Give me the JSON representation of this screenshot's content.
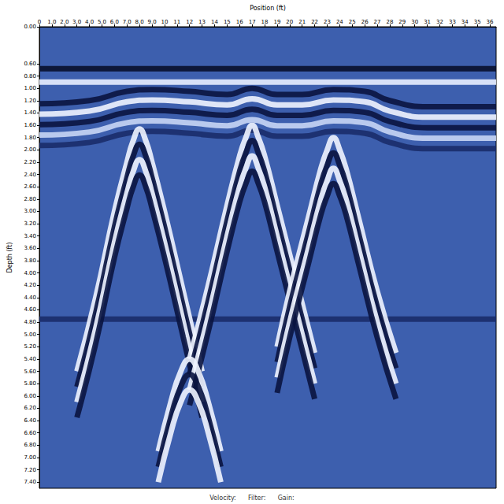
{
  "chart_data": {
    "type": "line",
    "x_label": "Position (ft)",
    "y_label": "Depth (ft)",
    "footer": [
      "Velocity:",
      "Filter:",
      "Gain:"
    ],
    "xlim": [
      0,
      36.5
    ],
    "ylim": [
      0,
      7.5
    ],
    "xticks": [
      0,
      {
        "value": 1,
        "label": "1.0"
      },
      {
        "value": 2,
        "label": "2.0"
      },
      {
        "value": 3,
        "label": "3.0"
      },
      {
        "value": 4,
        "label": "4.0"
      },
      {
        "value": 5,
        "label": "5.0"
      },
      {
        "value": 6,
        "label": "6.0"
      },
      {
        "value": 7,
        "label": "7.0"
      },
      {
        "value": 8,
        "label": "8.0"
      },
      {
        "value": 9,
        "label": "9.0"
      },
      10,
      11,
      12,
      13,
      14,
      15,
      16,
      17,
      18,
      19,
      20,
      21,
      22,
      23,
      24,
      25,
      26,
      27,
      28,
      29,
      30,
      31,
      32,
      33,
      34,
      35,
      36
    ],
    "yticks": [
      {
        "value": 0,
        "label": "0.00"
      },
      {
        "value": 0.6,
        "label": "0.60"
      },
      {
        "value": 0.8,
        "label": "0.80"
      },
      {
        "value": 1,
        "label": "1.00"
      },
      {
        "value": 1.2,
        "label": "1.20"
      },
      {
        "value": 1.4,
        "label": "1.40"
      },
      {
        "value": 1.6,
        "label": "1.60"
      },
      {
        "value": 1.8,
        "label": "1.80"
      },
      {
        "value": 2,
        "label": "2.00"
      },
      {
        "value": 2.2,
        "label": "2.20"
      },
      {
        "value": 2.4,
        "label": "2.40"
      },
      {
        "value": 2.6,
        "label": "2.60"
      },
      {
        "value": 2.8,
        "label": "2.80"
      },
      {
        "value": 3,
        "label": "3.00"
      },
      {
        "value": 3.2,
        "label": "3.20"
      },
      {
        "value": 3.4,
        "label": "3.40"
      },
      {
        "value": 3.6,
        "label": "3.60"
      },
      {
        "value": 3.8,
        "label": "3.80"
      },
      {
        "value": 4,
        "label": "4.00"
      },
      {
        "value": 4.2,
        "label": "4.20"
      },
      {
        "value": 4.4,
        "label": "4.40"
      },
      {
        "value": 4.6,
        "label": "4.60"
      },
      {
        "value": 4.8,
        "label": "4.80"
      },
      {
        "value": 5,
        "label": "5.00"
      },
      {
        "value": 5.2,
        "label": "5.20"
      },
      {
        "value": 5.4,
        "label": "5.40"
      },
      {
        "value": 5.6,
        "label": "5.60"
      },
      {
        "value": 5.8,
        "label": "5.80"
      },
      {
        "value": 6,
        "label": "6.00"
      },
      {
        "value": 6.2,
        "label": "6.20"
      },
      {
        "value": 6.4,
        "label": "6.40"
      },
      {
        "value": 6.6,
        "label": "6.60"
      },
      {
        "value": 6.8,
        "label": "6.80"
      },
      {
        "value": 7,
        "label": "7.00"
      },
      {
        "value": 7.2,
        "label": "7.20"
      },
      {
        "value": 7.4,
        "label": "7.40"
      }
    ],
    "grid": false,
    "series": [
      {
        "color": "#08102e",
        "x": [
          0,
          36.5
        ],
        "values": [
          0.68,
          0.68
        ]
      },
      {
        "color": "#e8eeff",
        "x": [
          0,
          36.5
        ],
        "values": [
          0.9,
          0.9
        ]
      },
      {
        "color": "#1a2c6a",
        "x": [
          0,
          36.5
        ],
        "values": [
          4.75,
          4.75
        ]
      },
      {
        "color": "#0a1440",
        "x": [
          0,
          4,
          7,
          9,
          12,
          15,
          17,
          19,
          21,
          23.5,
          26,
          28,
          31,
          34,
          36.5
        ],
        "values": [
          1.25,
          1.2,
          1.05,
          1.02,
          1.05,
          1.1,
          1.0,
          1.1,
          1.1,
          1.02,
          1.05,
          1.2,
          1.3,
          1.3,
          1.3
        ]
      },
      {
        "color": "#f0f4ff",
        "x": [
          0,
          4,
          7,
          9,
          12,
          15,
          17,
          19,
          21,
          23.5,
          26,
          28,
          31,
          34,
          36.5
        ],
        "values": [
          1.42,
          1.37,
          1.22,
          1.19,
          1.22,
          1.27,
          1.17,
          1.27,
          1.27,
          1.19,
          1.22,
          1.37,
          1.47,
          1.47,
          1.47
        ]
      },
      {
        "color": "#0a1440",
        "x": [
          0,
          4,
          7,
          9,
          12,
          15,
          17,
          19,
          21,
          23.5,
          26,
          28,
          31,
          34,
          36.5
        ],
        "values": [
          1.59,
          1.54,
          1.39,
          1.36,
          1.39,
          1.44,
          1.34,
          1.44,
          1.44,
          1.36,
          1.39,
          1.54,
          1.64,
          1.64,
          1.64
        ]
      },
      {
        "color": "#c8d6f5",
        "x": [
          0,
          4,
          7,
          9,
          12,
          15,
          17,
          19,
          21,
          23.5,
          26,
          28,
          31,
          34,
          36.5
        ],
        "values": [
          1.76,
          1.71,
          1.56,
          1.53,
          1.56,
          1.61,
          1.51,
          1.61,
          1.61,
          1.53,
          1.56,
          1.71,
          1.81,
          1.81,
          1.81
        ]
      },
      {
        "color": "#1a2c6a",
        "x": [
          0,
          4,
          7,
          9,
          12,
          15,
          17,
          19,
          21,
          23.5,
          26,
          28,
          31,
          34,
          36.5
        ],
        "values": [
          1.93,
          1.88,
          1.73,
          1.7,
          1.73,
          1.78,
          1.68,
          1.78,
          1.78,
          1.7,
          1.73,
          1.88,
          1.98,
          1.98,
          1.98
        ]
      },
      {
        "color": "#f0f4ff",
        "x": [
          3,
          4.5,
          6,
          7,
          7.5,
          8,
          8.5,
          9,
          10,
          11.5,
          13
        ],
        "values": [
          5.6,
          4.4,
          3.0,
          2.2,
          1.85,
          1.66,
          1.85,
          2.2,
          3.0,
          4.3,
          5.6
        ]
      },
      {
        "color": "#0a1440",
        "x": [
          3,
          4.5,
          6,
          7,
          7.5,
          8,
          8.5,
          9,
          10,
          11.5,
          13
        ],
        "values": [
          5.85,
          4.65,
          3.25,
          2.45,
          2.1,
          1.91,
          2.1,
          2.45,
          3.25,
          4.55,
          5.85
        ]
      },
      {
        "color": "#f0f4ff",
        "x": [
          3,
          4.5,
          6,
          7,
          7.5,
          8,
          8.5,
          9,
          10,
          11.5,
          13
        ],
        "values": [
          6.1,
          4.9,
          3.5,
          2.7,
          2.35,
          2.16,
          2.35,
          2.7,
          3.5,
          4.8,
          6.1
        ]
      },
      {
        "color": "#0a1440",
        "x": [
          3,
          4.5,
          6,
          7,
          7.5,
          8,
          8.5,
          9,
          10,
          11.5,
          13
        ],
        "values": [
          6.35,
          5.15,
          3.75,
          2.95,
          2.6,
          2.41,
          2.6,
          2.95,
          3.75,
          5.05,
          6.35
        ]
      },
      {
        "color": "#f0f4ff",
        "x": [
          12,
          13.5,
          15,
          16,
          16.5,
          17,
          17.5,
          18,
          19,
          20.5,
          22
        ],
        "values": [
          5.4,
          4.2,
          2.9,
          2.1,
          1.8,
          1.6,
          1.8,
          2.1,
          2.9,
          4.1,
          5.3
        ]
      },
      {
        "color": "#0a1440",
        "x": [
          12,
          13.5,
          15,
          16,
          16.5,
          17,
          17.5,
          18,
          19,
          20.5,
          22
        ],
        "values": [
          5.65,
          4.45,
          3.15,
          2.35,
          2.05,
          1.85,
          2.05,
          2.35,
          3.15,
          4.35,
          5.55
        ]
      },
      {
        "color": "#f0f4ff",
        "x": [
          12,
          13.5,
          15,
          16,
          16.5,
          17,
          17.5,
          18,
          19,
          20.5,
          22
        ],
        "values": [
          5.9,
          4.7,
          3.4,
          2.6,
          2.3,
          2.1,
          2.3,
          2.6,
          3.4,
          4.6,
          5.8
        ]
      },
      {
        "color": "#0a1440",
        "x": [
          12,
          13.5,
          15,
          16,
          16.5,
          17,
          17.5,
          18,
          19,
          20.5,
          22
        ],
        "values": [
          6.15,
          4.95,
          3.65,
          2.85,
          2.55,
          2.35,
          2.55,
          2.85,
          3.65,
          4.85,
          6.05
        ]
      },
      {
        "color": "#f0f4ff",
        "x": [
          19,
          20,
          21.5,
          22.5,
          23,
          23.5,
          24,
          24.5,
          25.5,
          27,
          28.5
        ],
        "values": [
          5.2,
          4.3,
          3.1,
          2.3,
          2.0,
          1.8,
          2.0,
          2.3,
          3.1,
          4.3,
          5.3
        ]
      },
      {
        "color": "#0a1440",
        "x": [
          19,
          20,
          21.5,
          22.5,
          23,
          23.5,
          24,
          24.5,
          25.5,
          27,
          28.5
        ],
        "values": [
          5.45,
          4.55,
          3.35,
          2.55,
          2.25,
          2.05,
          2.25,
          2.55,
          3.35,
          4.55,
          5.55
        ]
      },
      {
        "color": "#f0f4ff",
        "x": [
          19,
          20,
          21.5,
          22.5,
          23,
          23.5,
          24,
          24.5,
          25.5,
          27,
          28.5
        ],
        "values": [
          5.7,
          4.8,
          3.6,
          2.8,
          2.5,
          2.3,
          2.5,
          2.8,
          3.6,
          4.8,
          5.8
        ]
      },
      {
        "color": "#0a1440",
        "x": [
          19,
          20,
          21.5,
          22.5,
          23,
          23.5,
          24,
          24.5,
          25.5,
          27,
          28.5
        ],
        "values": [
          5.95,
          5.05,
          3.85,
          3.05,
          2.75,
          2.55,
          2.75,
          3.05,
          3.85,
          5.05,
          6.05
        ]
      },
      {
        "color": "#f0f4ff",
        "x": [
          9.5,
          10.5,
          11.3,
          12,
          12.7,
          13.5,
          14.5
        ],
        "values": [
          6.9,
          6.1,
          5.6,
          5.4,
          5.6,
          6.1,
          6.9
        ]
      },
      {
        "color": "#0a1440",
        "x": [
          9.5,
          10.5,
          11.3,
          12,
          12.7,
          13.5,
          14.5
        ],
        "values": [
          7.15,
          6.35,
          5.85,
          5.65,
          5.85,
          6.35,
          7.15
        ]
      },
      {
        "color": "#f0f4ff",
        "x": [
          9.5,
          10.5,
          11.3,
          12,
          12.7,
          13.5,
          14.5
        ],
        "values": [
          7.4,
          6.6,
          6.1,
          5.9,
          6.1,
          6.6,
          7.4
        ]
      }
    ]
  }
}
